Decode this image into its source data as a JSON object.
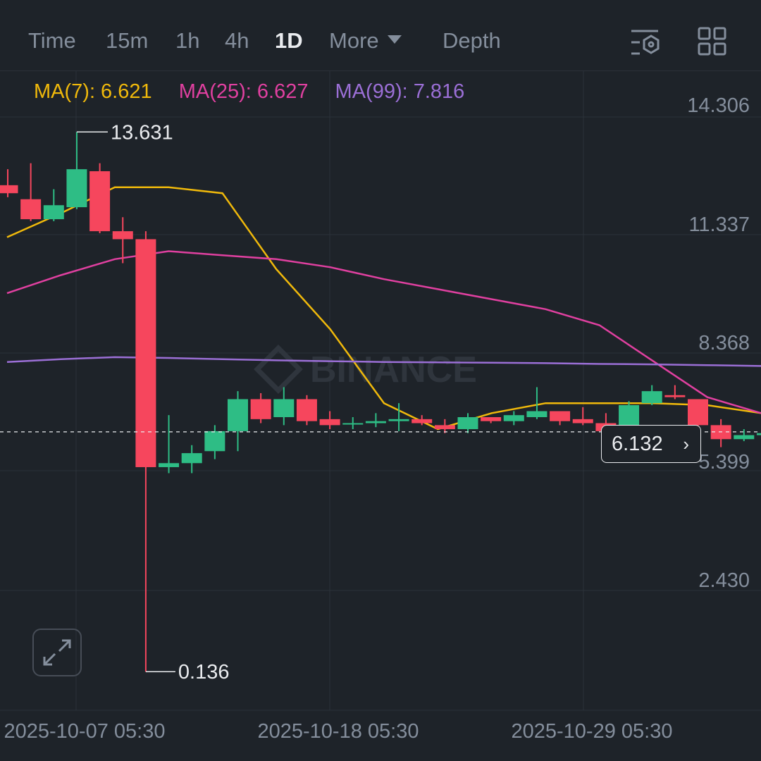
{
  "tabs": {
    "time": "Time",
    "m15": "15m",
    "h1": "1h",
    "h4": "4h",
    "d1": "1D",
    "more": "More",
    "depth": "Depth"
  },
  "toolbar_icons": [
    "chart-settings-icon",
    "grid-layout-icon"
  ],
  "ma": {
    "ma7": "MA(7): 6.621",
    "ma25": "MA(25): 6.627",
    "ma99": "MA(99): 7.816"
  },
  "watermark": "BINANCE",
  "current_price": "6.132",
  "colors": {
    "up": "#2ebd85",
    "down": "#f6465d",
    "ma7": "#f0b90b",
    "ma25": "#e040a0",
    "ma99": "#9b6fd6",
    "background": "#1e2329"
  },
  "chart_data": {
    "type": "candlestick",
    "y_axis_ticks": [
      "14.306",
      "11.337",
      "8.368",
      "5.399",
      "2.430"
    ],
    "x_axis_ticks": [
      "2025-10-07 05:30",
      "2025-10-18 05:30",
      "2025-10-29 05:30"
    ],
    "high_label": "13.631",
    "low_label": "0.136",
    "candles": [
      {
        "o": 12.3,
        "h": 12.7,
        "l": 12.0,
        "c": 12.1
      },
      {
        "o": 11.95,
        "h": 12.85,
        "l": 11.4,
        "c": 11.45
      },
      {
        "o": 11.45,
        "h": 12.2,
        "l": 11.4,
        "c": 11.8
      },
      {
        "o": 11.75,
        "h": 13.631,
        "l": 11.7,
        "c": 12.7
      },
      {
        "o": 12.65,
        "h": 12.85,
        "l": 11.1,
        "c": 11.15
      },
      {
        "o": 11.15,
        "h": 11.5,
        "l": 10.35,
        "c": 10.95
      },
      {
        "o": 10.95,
        "h": 11.15,
        "l": 0.136,
        "c": 5.25
      },
      {
        "o": 5.25,
        "h": 6.55,
        "l": 5.1,
        "c": 5.35
      },
      {
        "o": 5.35,
        "h": 5.8,
        "l": 5.1,
        "c": 5.6
      },
      {
        "o": 5.65,
        "h": 6.3,
        "l": 5.45,
        "c": 6.15
      },
      {
        "o": 6.15,
        "h": 7.15,
        "l": 5.65,
        "c": 6.95
      },
      {
        "o": 6.95,
        "h": 7.1,
        "l": 6.35,
        "c": 6.45
      },
      {
        "o": 6.5,
        "h": 7.25,
        "l": 6.3,
        "c": 6.95
      },
      {
        "o": 6.95,
        "h": 7.05,
        "l": 6.3,
        "c": 6.4
      },
      {
        "o": 6.45,
        "h": 6.65,
        "l": 6.2,
        "c": 6.3
      },
      {
        "o": 6.35,
        "h": 6.5,
        "l": 6.2,
        "c": 6.35
      },
      {
        "o": 6.35,
        "h": 6.6,
        "l": 6.25,
        "c": 6.4
      },
      {
        "o": 6.4,
        "h": 6.85,
        "l": 6.15,
        "c": 6.45
      },
      {
        "o": 6.45,
        "h": 6.55,
        "l": 6.3,
        "c": 6.35
      },
      {
        "o": 6.3,
        "h": 6.45,
        "l": 6.1,
        "c": 6.2
      },
      {
        "o": 6.2,
        "h": 6.6,
        "l": 6.1,
        "c": 6.5
      },
      {
        "o": 6.5,
        "h": 6.5,
        "l": 6.35,
        "c": 6.4
      },
      {
        "o": 6.4,
        "h": 6.65,
        "l": 6.3,
        "c": 6.55
      },
      {
        "o": 6.5,
        "h": 7.25,
        "l": 6.45,
        "c": 6.65
      },
      {
        "o": 6.65,
        "h": 6.65,
        "l": 6.3,
        "c": 6.4
      },
      {
        "o": 6.45,
        "h": 6.75,
        "l": 6.3,
        "c": 6.35
      },
      {
        "o": 6.35,
        "h": 6.6,
        "l": 6.05,
        "c": 6.15
      },
      {
        "o": 6.2,
        "h": 6.9,
        "l": 6.15,
        "c": 6.8
      },
      {
        "o": 6.85,
        "h": 7.3,
        "l": 6.8,
        "c": 7.15
      },
      {
        "o": 7.05,
        "h": 7.3,
        "l": 6.95,
        "c": 7.0
      },
      {
        "o": 6.95,
        "h": 6.95,
        "l": 6.1,
        "c": 6.3
      },
      {
        "o": 6.3,
        "h": 6.45,
        "l": 5.75,
        "c": 5.95
      },
      {
        "o": 5.95,
        "h": 6.2,
        "l": 5.9,
        "c": 6.05
      },
      {
        "o": 6.05,
        "h": 6.15,
        "l": 6.0,
        "c": 6.1
      }
    ],
    "series": [
      {
        "name": "MA(7)",
        "values": [
          11.0,
          11.6,
          12.25,
          12.25,
          12.1,
          10.2,
          8.7,
          6.85,
          6.2,
          6.6,
          6.85,
          6.85,
          6.85,
          6.8,
          6.6
        ]
      },
      {
        "name": "MA(25)",
        "values": [
          9.6,
          10.05,
          10.45,
          10.65,
          10.55,
          10.45,
          10.25,
          9.95,
          9.7,
          9.45,
          9.2,
          8.8,
          7.9,
          7.0,
          6.6
        ]
      },
      {
        "name": "MA(99)",
        "values": [
          7.88,
          7.95,
          8.0,
          7.98,
          7.95,
          7.92,
          7.9,
          7.88,
          7.87,
          7.86,
          7.85,
          7.83,
          7.82,
          7.8,
          7.78
        ]
      }
    ]
  }
}
